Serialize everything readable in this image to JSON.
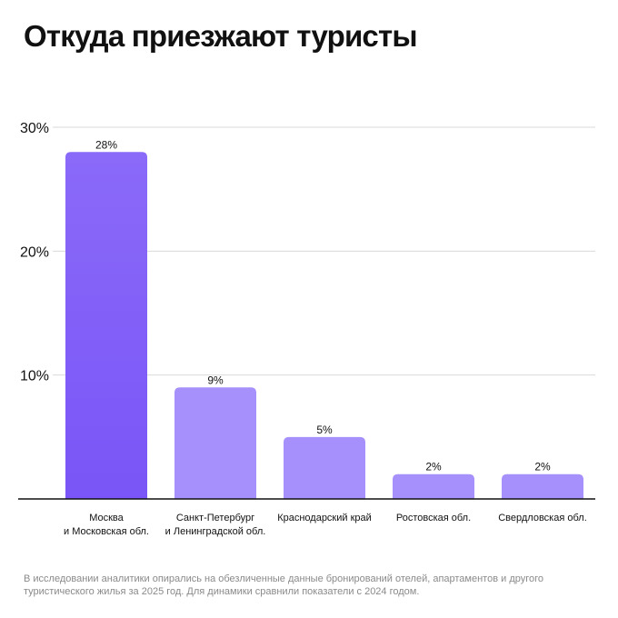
{
  "title": "Откуда приезжают туристы",
  "footnote": "В исследовании аналитики опирались на обезличенные данные бронирований отелей, апартаментов и другого туристического жилья за 2025 год. Для динамики сравнили показатели с 2024 годом.",
  "chart_data": {
    "type": "bar",
    "title": "Откуда приезжают туристы",
    "xlabel": "",
    "ylabel": "",
    "ylim": [
      0,
      30
    ],
    "yticks": [
      10,
      20,
      30
    ],
    "ytick_labels": [
      "10%",
      "20%",
      "30%"
    ],
    "grid": true,
    "categories": [
      [
        "Москва",
        "и Московская обл."
      ],
      [
        "Санкт-Петербург",
        "и Ленинградской обл."
      ],
      [
        "Краснодарский край"
      ],
      [
        "Ростовская обл."
      ],
      [
        "Свердловская обл."
      ]
    ],
    "values": [
      28,
      9,
      5,
      2,
      2
    ],
    "value_labels": [
      "28%",
      "9%",
      "5%",
      "2%",
      "2%"
    ],
    "colors": {
      "highlight_top": "#8a6af9",
      "highlight_bottom": "#7a55f7",
      "bar": "#a690fb",
      "grid": "#d9d9d9",
      "axis": "#111111",
      "text": "#111111"
    }
  }
}
